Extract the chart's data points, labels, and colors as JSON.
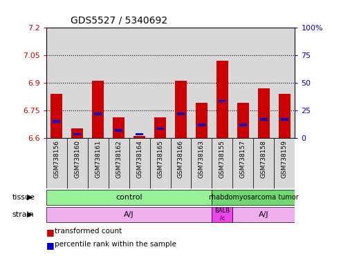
{
  "title": "GDS5527 / 5340692",
  "samples": [
    "GSM738156",
    "GSM738160",
    "GSM738161",
    "GSM738162",
    "GSM738164",
    "GSM738165",
    "GSM738166",
    "GSM738163",
    "GSM738155",
    "GSM738157",
    "GSM738158",
    "GSM738159"
  ],
  "red_values": [
    6.84,
    6.65,
    6.91,
    6.71,
    6.61,
    6.71,
    6.91,
    6.79,
    7.02,
    6.79,
    6.87,
    6.84
  ],
  "blue_values": [
    6.69,
    6.62,
    6.73,
    6.64,
    6.62,
    6.65,
    6.73,
    6.67,
    6.8,
    6.67,
    6.7,
    6.7
  ],
  "ylim_left": [
    6.6,
    7.2
  ],
  "ylim_right": [
    0,
    100
  ],
  "yticks_left": [
    6.6,
    6.75,
    6.9,
    7.05,
    7.2
  ],
  "yticks_right": [
    0,
    25,
    50,
    75,
    100
  ],
  "ytick_labels_left": [
    "6.6",
    "6.75",
    "6.9",
    "7.05",
    "7.2"
  ],
  "ytick_labels_right": [
    "0",
    "25",
    "50",
    "75",
    "100%"
  ],
  "hlines": [
    6.75,
    6.9,
    7.05
  ],
  "bar_color_red": "#CC0000",
  "bar_color_blue": "#0000CC",
  "bar_width": 0.55,
  "tick_label_color_left": "#CC0000",
  "tick_label_color_right": "#0000CC",
  "tissue_label": "tissue",
  "strain_label": "strain",
  "control_color": "#98F098",
  "tumor_color": "#70D870",
  "strain_aj_color": "#F0B0F0",
  "strain_balb_color": "#EE44EE",
  "col_bg_color": "#D8D8D8",
  "plot_bg_color": "#FFFFFF",
  "n_control": 8,
  "balb_idx": 8
}
